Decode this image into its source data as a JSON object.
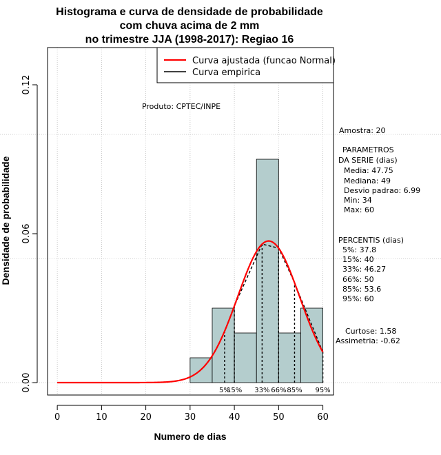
{
  "chart_data": {
    "type": "bar",
    "title": [
      "Histograma e curva de densidade de probabilidade",
      "com chuva acima de 2 mm",
      "no trimestre JJA (1998-2017): Regiao 16"
    ],
    "xlabel": "Numero de dias",
    "ylabel": "Densidade de probabilidade",
    "xlim": [
      -2.2,
      62.4
    ],
    "ylim": [
      -0.005,
      0.135
    ],
    "x_ticks": [
      0,
      10,
      20,
      30,
      40,
      50,
      60
    ],
    "y_ticks": [
      0.0,
      0.06,
      0.12
    ],
    "y_tick_labels": [
      "0.00",
      "0.06",
      "0.12"
    ],
    "bins": [
      {
        "from": 30,
        "to": 35,
        "density": 0.01
      },
      {
        "from": 35,
        "to": 40,
        "density": 0.03
      },
      {
        "from": 40,
        "to": 45,
        "density": 0.02
      },
      {
        "from": 45,
        "to": 50,
        "density": 0.09
      },
      {
        "from": 50,
        "to": 55,
        "density": 0.02
      },
      {
        "from": 55,
        "to": 60,
        "density": 0.03
      }
    ],
    "fitted_curve": {
      "name": "Curva ajustada (funcao Normal)",
      "mean": 47.75,
      "sd": 6.99,
      "x_from": 0,
      "x_to": 60,
      "color": "#ff0000"
    },
    "empirical_curve": {
      "name": "Curva empirica",
      "color": "#000000"
    },
    "grid_x": [
      0,
      10,
      20,
      30,
      40,
      50,
      60
    ],
    "grid_y": [
      0.0,
      0.05,
      0.1
    ],
    "percentile_markers": [
      {
        "x": 37.8,
        "label": "5%"
      },
      {
        "x": 40,
        "label": "15%"
      },
      {
        "x": 46.27,
        "label": "33%"
      },
      {
        "x": 50,
        "label": "66%"
      },
      {
        "x": 53.6,
        "label": "85%"
      },
      {
        "x": 60,
        "label": "95%"
      }
    ],
    "legend_position": "top-right",
    "annotation": "Produto: CPTEC/INPE"
  },
  "stats": {
    "amostra": "Amostra: 20",
    "parametros_title_1": "PARAMETROS",
    "parametros_title_2": "DA SERIE (dias)",
    "media": "Media: 47.75",
    "mediana": "Mediana: 49",
    "desvio": "Desvio padrao: 6.99",
    "min": "Min: 34",
    "max": "Max: 60",
    "percentis_title": "PERCENTIS (dias)",
    "p5": "5%: 37.8",
    "p15": "15%: 40",
    "p33": "33%: 46.27",
    "p66": "66%: 50",
    "p85": "85%: 53.6",
    "p95": "95%: 60",
    "curtose": "Curtose: 1.58",
    "assimetria": "Assimetria: -0.62"
  },
  "colors": {
    "bar_fill": "#b4cdcd",
    "grid": "#bebebe",
    "fit": "#ff0000"
  }
}
